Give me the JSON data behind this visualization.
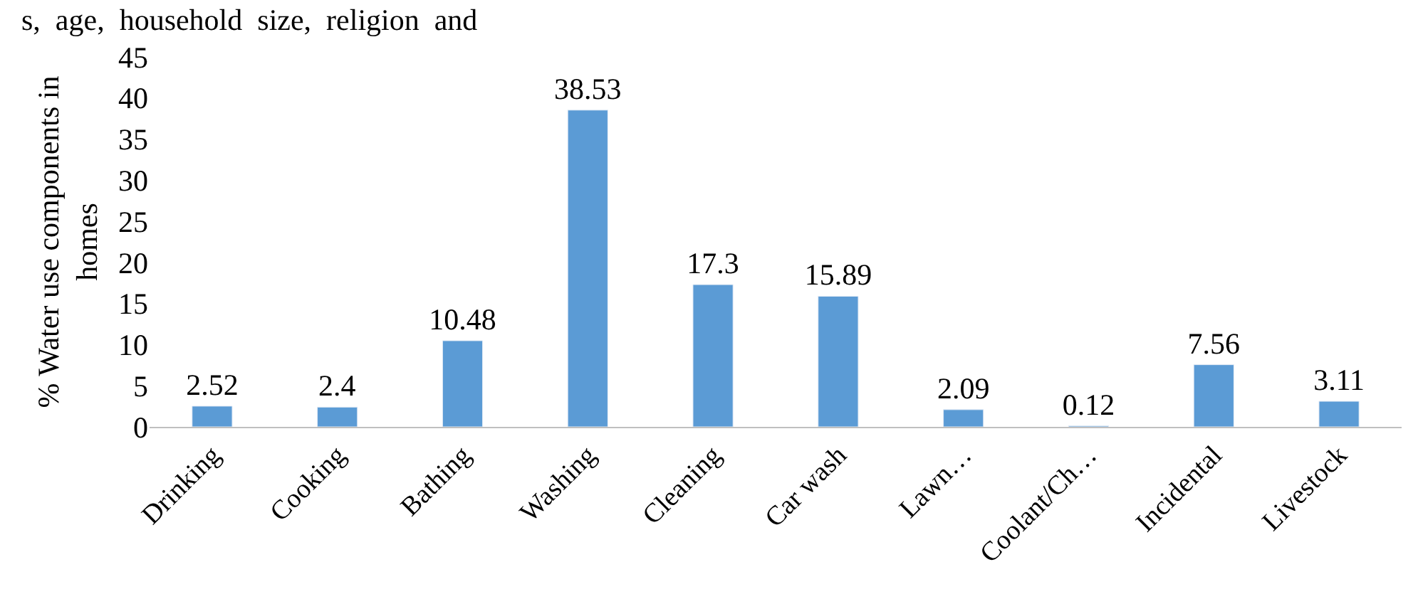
{
  "chart_data": {
    "type": "bar",
    "ylabel": "% Water use components in homes",
    "annotations": [
      "s,  age,  household  size,  religion  and"
    ],
    "categories": [
      "Drinking",
      "Cooking",
      "Bathing",
      "Washing",
      "Cleaning",
      "Car wash",
      "Lawn…",
      "Coolant/Ch…",
      "Incidental",
      "Livestock"
    ],
    "values": [
      2.52,
      2.4,
      10.48,
      38.53,
      17.3,
      15.89,
      2.09,
      0.12,
      7.56,
      3.11
    ],
    "color": "#5b9bd5",
    "ylim": [
      0,
      45
    ],
    "yticks": [
      0,
      5,
      10,
      15,
      20,
      25,
      30,
      35,
      40,
      45
    ],
    "data_labels": true,
    "legend": false
  }
}
